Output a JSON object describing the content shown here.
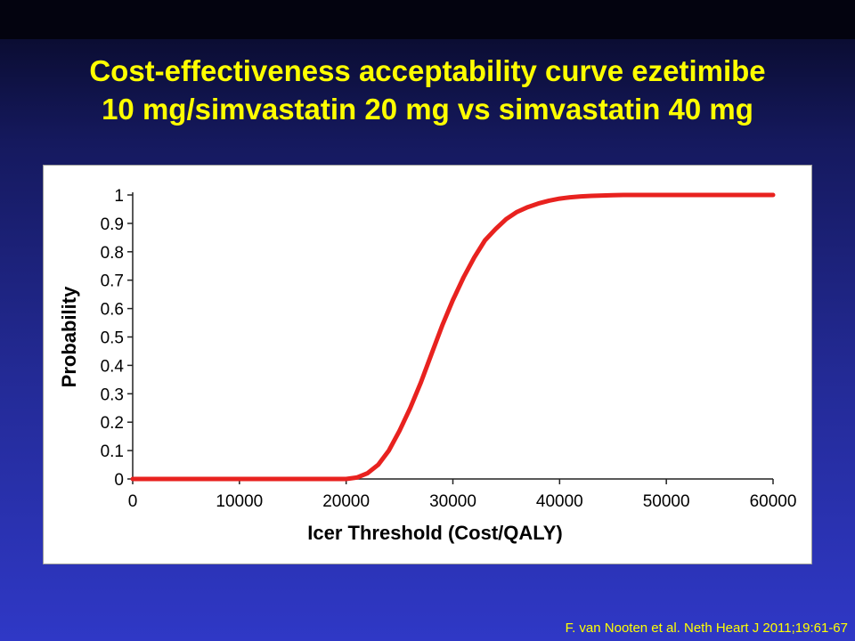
{
  "slide": {
    "title_lines": [
      "Cost-effectiveness acceptability curve ezetimibe",
      "10 mg/simvastatin 20 mg vs simvastatin 40 mg"
    ],
    "citation": "F. van Nooten et al. Neth Heart J 2011;19:61-67"
  },
  "colors": {
    "title": "#ffff00",
    "curve": "#e8221f",
    "background": "#2a32b5"
  },
  "chart_data": {
    "type": "line",
    "title": "",
    "xlabel": "Icer Threshold (Cost/QALY)",
    "ylabel": "Probability",
    "xlim": [
      0,
      60000
    ],
    "ylim": [
      0,
      1
    ],
    "x_ticks": [
      0,
      10000,
      20000,
      30000,
      40000,
      50000,
      60000
    ],
    "x_tick_labels": [
      "0",
      "10000",
      "20000",
      "30000",
      "40000",
      "50000",
      "60000"
    ],
    "y_ticks": [
      0,
      0.1,
      0.2,
      0.3,
      0.4,
      0.5,
      0.6,
      0.7,
      0.8,
      0.9,
      1
    ],
    "y_tick_labels": [
      "0",
      "0.1",
      "0.2",
      "0.3",
      "0.4",
      "0.5",
      "0.6",
      "0.7",
      "0.8",
      "0.9",
      "1"
    ],
    "grid": false,
    "series": [
      {
        "x": [
          0,
          5000,
          10000,
          15000,
          19000,
          20000,
          21000,
          22000,
          23000,
          24000,
          25000,
          26000,
          27000,
          28000,
          29000,
          30000,
          31000,
          32000,
          33000,
          34000,
          35000,
          36000,
          37000,
          38000,
          39000,
          40000,
          41000,
          42000,
          43000,
          44000,
          45000,
          46000,
          48000,
          50000,
          55000,
          60000
        ],
        "y": [
          0,
          0,
          0,
          0,
          0,
          0,
          0.005,
          0.02,
          0.05,
          0.1,
          0.17,
          0.25,
          0.34,
          0.44,
          0.54,
          0.63,
          0.71,
          0.78,
          0.84,
          0.88,
          0.915,
          0.94,
          0.957,
          0.97,
          0.98,
          0.987,
          0.992,
          0.995,
          0.997,
          0.998,
          0.999,
          1.0,
          1.0,
          1.0,
          1.0,
          1.0
        ]
      }
    ]
  }
}
